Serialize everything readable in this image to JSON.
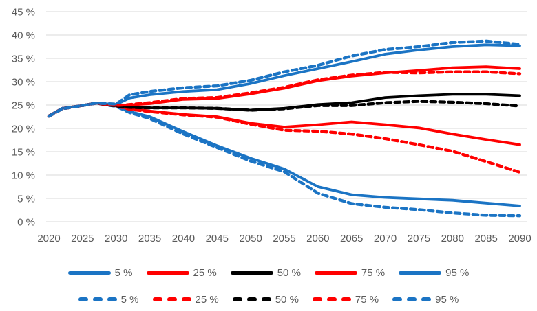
{
  "palette": {
    "blue": "#1B74C4",
    "red": "#FF0000",
    "black": "#000000",
    "gridline": "#D9D9D9",
    "axis_text": "#595959",
    "background": "#FFFFFF"
  },
  "chart_data": {
    "type": "line",
    "title": "",
    "xlabel": "",
    "ylabel": "",
    "grid": true,
    "legend_position": "bottom",
    "x_min": 2020,
    "x_max": 2090,
    "y_min": 0,
    "y_max": 45,
    "y_tick_values": [
      0,
      5,
      10,
      15,
      20,
      25,
      30,
      35,
      40,
      45
    ],
    "y_tick_labels": [
      "0 %",
      "5 %",
      "10 %",
      "15 %",
      "20 %",
      "25 %",
      "30 %",
      "35 %",
      "40 %",
      "45 %"
    ],
    "x_tick_values": [
      2020,
      2025,
      2030,
      2035,
      2040,
      2045,
      2050,
      2055,
      2060,
      2065,
      2070,
      2075,
      2080,
      2085,
      2090
    ],
    "x_tick_labels": [
      "2020",
      "2025",
      "2030",
      "2035",
      "2040",
      "2045",
      "2050",
      "2055",
      "2060",
      "2065",
      "2070",
      "2075",
      "2080",
      "2085",
      "2090"
    ],
    "x": [
      2020,
      2022,
      2025,
      2027,
      2030,
      2032,
      2035,
      2040,
      2045,
      2050,
      2055,
      2060,
      2065,
      2070,
      2075,
      2080,
      2085,
      2090
    ],
    "series": [
      {
        "name": "5 %",
        "line_style": "solid",
        "color": "#1B74C4",
        "values": [
          22.7,
          24.3,
          24.9,
          25.4,
          24.8,
          23.6,
          22.5,
          19.3,
          16.3,
          13.6,
          11.3,
          7.5,
          5.8,
          5.2,
          4.9,
          4.6,
          4.0,
          3.4
        ]
      },
      {
        "name": "25 %",
        "line_style": "solid",
        "color": "#FF0000",
        "values": [
          22.7,
          24.3,
          24.9,
          25.4,
          24.8,
          24.2,
          23.7,
          23.0,
          22.5,
          21.1,
          20.3,
          20.8,
          21.4,
          20.8,
          20.1,
          18.8,
          17.6,
          16.5
        ]
      },
      {
        "name": "50 %",
        "line_style": "solid",
        "color": "#000000",
        "values": [
          22.7,
          24.3,
          24.9,
          25.4,
          24.8,
          24.5,
          24.4,
          24.4,
          24.3,
          23.9,
          24.3,
          25.1,
          25.5,
          26.6,
          27.0,
          27.3,
          27.3,
          27.0
        ]
      },
      {
        "name": "75 %",
        "line_style": "solid",
        "color": "#FF0000",
        "values": [
          22.7,
          24.3,
          24.9,
          25.4,
          24.9,
          25.0,
          25.3,
          26.2,
          26.4,
          27.4,
          28.6,
          30.2,
          31.2,
          31.9,
          32.4,
          33.0,
          33.2,
          32.8
        ]
      },
      {
        "name": "95 %",
        "line_style": "solid",
        "color": "#1B74C4",
        "values": [
          22.7,
          24.3,
          24.9,
          25.4,
          25.1,
          26.5,
          27.2,
          27.9,
          28.3,
          29.6,
          31.3,
          32.8,
          34.3,
          35.9,
          36.8,
          37.5,
          37.9,
          37.7
        ]
      },
      {
        "name": "5 %",
        "line_style": "dashed",
        "color": "#1B74C4",
        "values": [
          22.6,
          24.2,
          24.9,
          25.4,
          24.7,
          23.4,
          22.1,
          18.8,
          15.9,
          13.0,
          10.7,
          6.1,
          3.9,
          3.1,
          2.6,
          1.9,
          1.4,
          1.3
        ]
      },
      {
        "name": "25 %",
        "line_style": "dashed",
        "color": "#FF0000",
        "values": [
          22.6,
          24.2,
          24.9,
          25.4,
          24.8,
          24.1,
          23.6,
          22.9,
          22.4,
          20.9,
          19.6,
          19.4,
          18.8,
          17.8,
          16.5,
          15.1,
          12.9,
          10.6
        ]
      },
      {
        "name": "50 %",
        "line_style": "dashed",
        "color": "#000000",
        "values": [
          22.6,
          24.2,
          24.9,
          25.4,
          24.8,
          24.5,
          24.4,
          24.4,
          24.3,
          23.9,
          24.2,
          24.9,
          24.9,
          25.5,
          25.8,
          25.6,
          25.3,
          24.8
        ]
      },
      {
        "name": "75 %",
        "line_style": "dashed",
        "color": "#FF0000",
        "values": [
          22.6,
          24.2,
          24.9,
          25.4,
          24.9,
          25.1,
          25.5,
          26.4,
          26.6,
          27.6,
          28.8,
          30.4,
          31.4,
          32.0,
          31.9,
          32.1,
          32.1,
          31.7
        ]
      },
      {
        "name": "95 %",
        "line_style": "dashed",
        "color": "#1B74C4",
        "values": [
          22.6,
          24.2,
          24.9,
          25.4,
          25.2,
          27.2,
          27.9,
          28.7,
          29.1,
          30.3,
          32.1,
          33.5,
          35.5,
          36.9,
          37.5,
          38.4,
          38.7,
          38.0
        ]
      }
    ],
    "legend_rows": [
      {
        "style": "solid",
        "labels": [
          "5 %",
          "25 %",
          "50 %",
          "75 %",
          "95 %"
        ],
        "colors": [
          "#1B74C4",
          "#FF0000",
          "#000000",
          "#FF0000",
          "#1B74C4"
        ]
      },
      {
        "style": "dashed",
        "labels": [
          "5 %",
          "25 %",
          "50 %",
          "75 %",
          "95 %"
        ],
        "colors": [
          "#1B74C4",
          "#FF0000",
          "#000000",
          "#FF0000",
          "#1B74C4"
        ]
      }
    ]
  }
}
